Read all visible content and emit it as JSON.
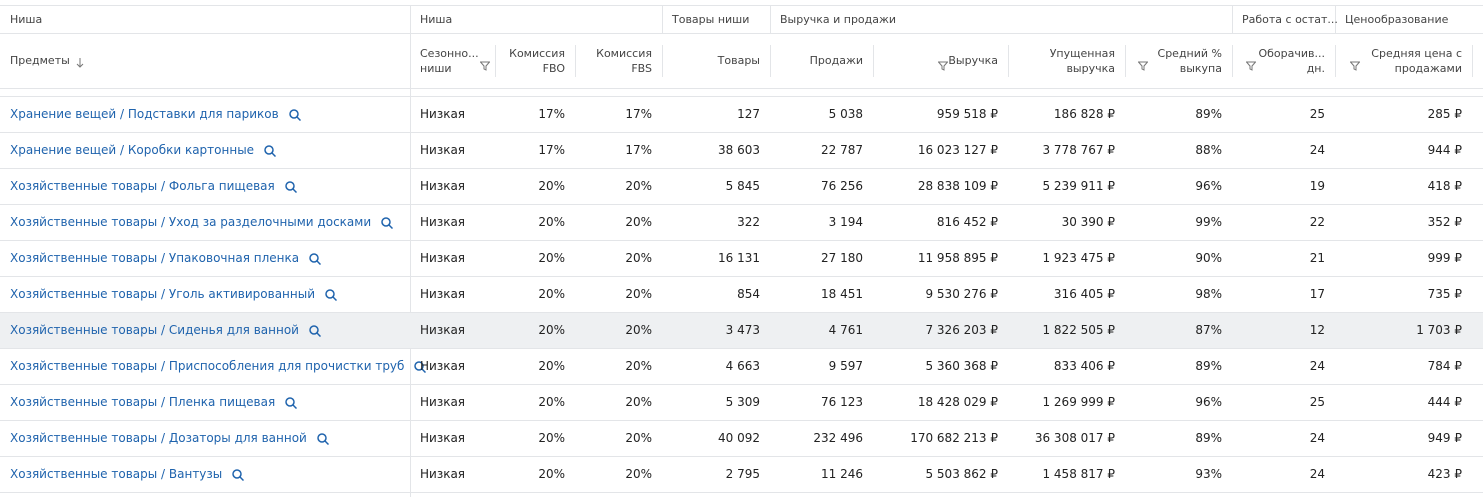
{
  "table": {
    "groups": [
      "Ниша",
      "Ниша",
      "Товары ниши",
      "Выручка и продажи",
      "Работа с остат...",
      "Ценообразование"
    ],
    "headers": [
      [
        "Предметы"
      ],
      [
        "Сезонно...",
        "ниши"
      ],
      [
        "Комиссия",
        "FBO"
      ],
      [
        "Комиссия",
        "FBS"
      ],
      [
        "Товары"
      ],
      [
        "Продажи"
      ],
      [
        "Выручка"
      ],
      [
        "Упущенная",
        "выручка"
      ],
      [
        "Средний %",
        "выкупа"
      ],
      [
        "Оборачив...",
        "дн."
      ],
      [
        "Средняя цена с",
        "продажами"
      ]
    ],
    "rows": [
      [
        "Хранение вещей / Подставки для париков",
        "Низкая",
        "17%",
        "17%",
        "127",
        "5 038",
        "959 518 ₽",
        "186 828 ₽",
        "89%",
        "25",
        "285 ₽"
      ],
      [
        "Хранение вещей / Коробки картонные",
        "Низкая",
        "17%",
        "17%",
        "38 603",
        "22 787",
        "16 023 127 ₽",
        "3 778 767 ₽",
        "88%",
        "24",
        "944 ₽"
      ],
      [
        "Хозяйственные товары / Фольга пищевая",
        "Низкая",
        "20%",
        "20%",
        "5 845",
        "76 256",
        "28 838 109 ₽",
        "5 239 911 ₽",
        "96%",
        "19",
        "418 ₽"
      ],
      [
        "Хозяйственные товары / Уход за разделочными досками",
        "Низкая",
        "20%",
        "20%",
        "322",
        "3 194",
        "816 452 ₽",
        "30 390 ₽",
        "99%",
        "22",
        "352 ₽"
      ],
      [
        "Хозяйственные товары / Упаковочная пленка",
        "Низкая",
        "20%",
        "20%",
        "16 131",
        "27 180",
        "11 958 895 ₽",
        "1 923 475 ₽",
        "90%",
        "21",
        "999 ₽"
      ],
      [
        "Хозяйственные товары / Уголь активированный",
        "Низкая",
        "20%",
        "20%",
        "854",
        "18 451",
        "9 530 276 ₽",
        "316 405 ₽",
        "98%",
        "17",
        "735 ₽"
      ],
      [
        "Хозяйственные товары / Сиденья для ванной",
        "Низкая",
        "20%",
        "20%",
        "3 473",
        "4 761",
        "7 326 203 ₽",
        "1 822 505 ₽",
        "87%",
        "12",
        "1 703 ₽"
      ],
      [
        "Хозяйственные товары / Приспособления для прочистки труб",
        "Низкая",
        "20%",
        "20%",
        "4 663",
        "9 597",
        "5 360 368 ₽",
        "833 406 ₽",
        "89%",
        "24",
        "784 ₽"
      ],
      [
        "Хозяйственные товары / Пленка пищевая",
        "Низкая",
        "20%",
        "20%",
        "5 309",
        "76 123",
        "18 428 029 ₽",
        "1 269 999 ₽",
        "96%",
        "25",
        "444 ₽"
      ],
      [
        "Хозяйственные товары / Дозаторы для ванной",
        "Низкая",
        "20%",
        "20%",
        "40 092",
        "232 496",
        "170 682 213 ₽",
        "36 308 017 ₽",
        "89%",
        "24",
        "949 ₽"
      ],
      [
        "Хозяйственные товары / Вантузы",
        "Низкая",
        "20%",
        "20%",
        "2 795",
        "11 246",
        "5 503 862 ₽",
        "1 458 817 ₽",
        "93%",
        "24",
        "423 ₽"
      ]
    ]
  }
}
